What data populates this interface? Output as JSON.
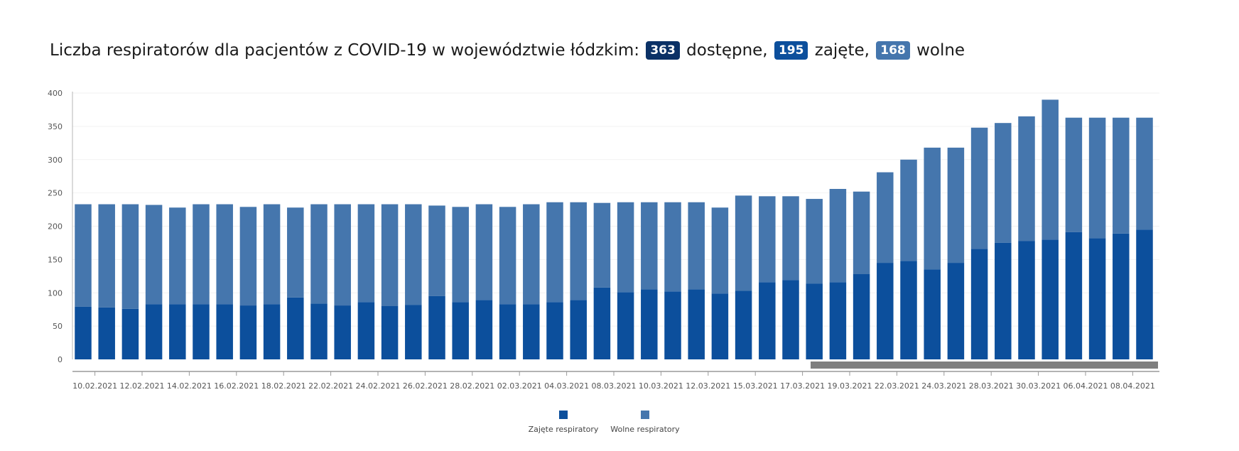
{
  "title": {
    "prefix": "Liczba respiratorów dla pacjentów z COVID-19 w województwie łódzkim:",
    "available_value": "363",
    "available_label": "dostępne,",
    "occupied_value": "195",
    "occupied_label": "zajęte,",
    "free_value": "168",
    "free_label": "wolne"
  },
  "legend": {
    "occupied": "Zajęte respiratory",
    "free": "Wolne respiratory"
  },
  "colors": {
    "occupied": "#0c4f9c",
    "free": "#4576ad",
    "scrollbar": "#7f7f7f"
  },
  "chart_data": {
    "type": "bar",
    "stacked": true,
    "ylim": [
      0,
      400
    ],
    "yticks": [
      0,
      50,
      100,
      150,
      200,
      250,
      300,
      350,
      400
    ],
    "grid": true,
    "legend_position": "bottom-center",
    "xtick_labels": [
      "10.02.2021",
      "12.02.2021",
      "14.02.2021",
      "16.02.2021",
      "18.02.2021",
      "22.02.2021",
      "24.02.2021",
      "26.02.2021",
      "28.02.2021",
      "02.03.2021",
      "04.03.2021",
      "08.03.2021",
      "10.03.2021",
      "12.03.2021",
      "15.03.2021",
      "17.03.2021",
      "19.03.2021",
      "22.03.2021",
      "24.03.2021",
      "28.03.2021",
      "30.03.2021",
      "06.04.2021",
      "08.04.2021"
    ],
    "xtick_bar_index": [
      1,
      3,
      5,
      7,
      9,
      11,
      13,
      15,
      17,
      19,
      21,
      23,
      25,
      27,
      29,
      31,
      33,
      35,
      37,
      39,
      41,
      43,
      45
    ],
    "series": [
      {
        "name": "Zajęte respiratory",
        "values": [
          79,
          78,
          76,
          83,
          83,
          83,
          83,
          81,
          83,
          93,
          84,
          81,
          86,
          80,
          82,
          95,
          86,
          89,
          83,
          83,
          86,
          89,
          108,
          101,
          105,
          102,
          105,
          99,
          103,
          116,
          119,
          114,
          116,
          128,
          145,
          148,
          135,
          145,
          166,
          175,
          178,
          180,
          191,
          182,
          189,
          195
        ]
      },
      {
        "name": "Wolne respiratory",
        "values": [
          154,
          155,
          157,
          149,
          145,
          150,
          150,
          148,
          150,
          135,
          149,
          152,
          147,
          153,
          151,
          136,
          143,
          144,
          146,
          150,
          150,
          147,
          127,
          135,
          131,
          134,
          131,
          129,
          143,
          129,
          126,
          127,
          140,
          124,
          136,
          152,
          183,
          173,
          182,
          180,
          187,
          210,
          172,
          181,
          174,
          168
        ]
      }
    ]
  }
}
